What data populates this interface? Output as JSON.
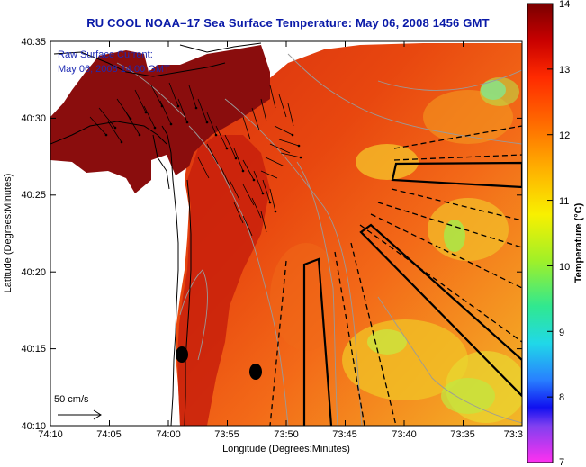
{
  "title": "RU COOL  NOAA–17  Sea Surface Temperature:  May 06, 2008 1456 GMT",
  "overlay_text": {
    "line1": "Raw Surface Current:",
    "line2": "May 06, 2008 14:00 GMT"
  },
  "scale": {
    "label": "50 cm/s"
  },
  "axes": {
    "x_label": "Longitude (Degrees:Minutes)",
    "y_label": "Latitude (Degrees:Minutes)",
    "x_ticks": [
      "74:10",
      "74:05",
      "74:00",
      "73:55",
      "73:50",
      "73:45",
      "73:40",
      "73:35",
      "73:3"
    ],
    "y_ticks": [
      "40:35",
      "40:30",
      "40:25",
      "40:20",
      "40:15",
      "40:10"
    ]
  },
  "colorbar": {
    "label": "Temperature (°C)",
    "ticks": [
      "14",
      "13",
      "12",
      "11",
      "10",
      "9",
      "8",
      "7"
    ],
    "min": 7,
    "max": 14
  },
  "colors": {
    "title": "#0a1aa8",
    "land": "#ffffff",
    "warm": "#d42a10",
    "hot": "#8a0c0c",
    "orange": "#f26018",
    "yellow": "#f0c020",
    "green": "#b8e830",
    "cyan": "#30d8d0"
  }
}
